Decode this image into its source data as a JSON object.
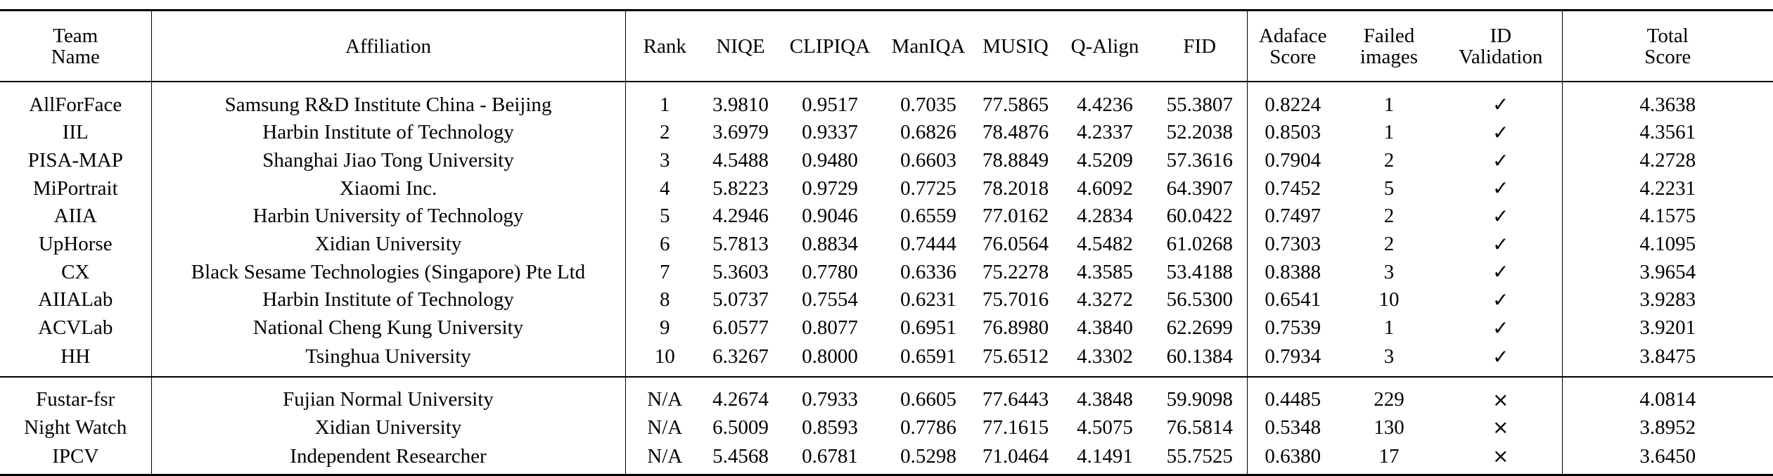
{
  "table": {
    "headers": [
      [
        "Team",
        "Name"
      ],
      [
        "Affiliation"
      ],
      [
        "Rank"
      ],
      [
        "NIQE"
      ],
      [
        "CLIPIQA"
      ],
      [
        "ManIQA"
      ],
      [
        "MUSIQ"
      ],
      [
        "Q-Align"
      ],
      [
        "FID"
      ],
      [
        "Adaface",
        "Score"
      ],
      [
        "Failed",
        "images"
      ],
      [
        "ID",
        "Validation"
      ],
      [
        "Total",
        "Score"
      ]
    ],
    "rows": [
      [
        "AllForFace",
        "Samsung R&D Institute China - Beijing",
        "1",
        "3.9810",
        "0.9517",
        "0.7035",
        "77.5865",
        "4.4236",
        "55.3807",
        "0.8224",
        "1",
        "✓",
        "4.3638"
      ],
      [
        "IIL",
        "Harbin Institute of Technology",
        "2",
        "3.6979",
        "0.9337",
        "0.6826",
        "78.4876",
        "4.2337",
        "52.2038",
        "0.8503",
        "1",
        "✓",
        "4.3561"
      ],
      [
        "PISA-MAP",
        "Shanghai Jiao Tong University",
        "3",
        "4.5488",
        "0.9480",
        "0.6603",
        "78.8849",
        "4.5209",
        "57.3616",
        "0.7904",
        "2",
        "✓",
        "4.2728"
      ],
      [
        "MiPortrait",
        "Xiaomi Inc.",
        "4",
        "5.8223",
        "0.9729",
        "0.7725",
        "78.2018",
        "4.6092",
        "64.3907",
        "0.7452",
        "5",
        "✓",
        "4.2231"
      ],
      [
        "AIIA",
        "Harbin University of Technology",
        "5",
        "4.2946",
        "0.9046",
        "0.6559",
        "77.0162",
        "4.2834",
        "60.0422",
        "0.7497",
        "2",
        "✓",
        "4.1575"
      ],
      [
        "UpHorse",
        "Xidian University",
        "6",
        "5.7813",
        "0.8834",
        "0.7444",
        "76.0564",
        "4.5482",
        "61.0268",
        "0.7303",
        "2",
        "✓",
        "4.1095"
      ],
      [
        "CX",
        "Black Sesame Technologies (Singapore) Pte Ltd",
        "7",
        "5.3603",
        "0.7780",
        "0.6336",
        "75.2278",
        "4.3585",
        "53.4188",
        "0.8388",
        "3",
        "✓",
        "3.9654"
      ],
      [
        "AIIALab",
        "Harbin Institute of Technology",
        "8",
        "5.0737",
        "0.7554",
        "0.6231",
        "75.7016",
        "4.3272",
        "56.5300",
        "0.6541",
        "10",
        "✓",
        "3.9283"
      ],
      [
        "ACVLab",
        "National Cheng Kung University",
        "9",
        "6.0577",
        "0.8077",
        "0.6951",
        "76.8980",
        "4.3840",
        "62.2699",
        "0.7539",
        "1",
        "✓",
        "3.9201"
      ],
      [
        "HH",
        "Tsinghua University",
        "10",
        "6.3267",
        "0.8000",
        "0.6591",
        "75.6512",
        "4.3302",
        "60.1384",
        "0.7934",
        "3",
        "✓",
        "3.8475"
      ]
    ],
    "extra_rows": [
      [
        "Fustar-fsr",
        "Fujian Normal University",
        "N/A",
        "4.2674",
        "0.7933",
        "0.6605",
        "77.6443",
        "4.3848",
        "59.9098",
        "0.4485",
        "229",
        "×",
        "4.0814"
      ],
      [
        "Night Watch",
        "Xidian University",
        "N/A",
        "6.5009",
        "0.8593",
        "0.7786",
        "77.1615",
        "4.5075",
        "76.5814",
        "0.5348",
        "130",
        "×",
        "3.8952"
      ],
      [
        "IPCV",
        "Independent Researcher",
        "N/A",
        "5.4568",
        "0.6781",
        "0.5298",
        "71.0464",
        "4.1491",
        "55.7525",
        "0.6380",
        "17",
        "×",
        "3.6450"
      ]
    ]
  }
}
